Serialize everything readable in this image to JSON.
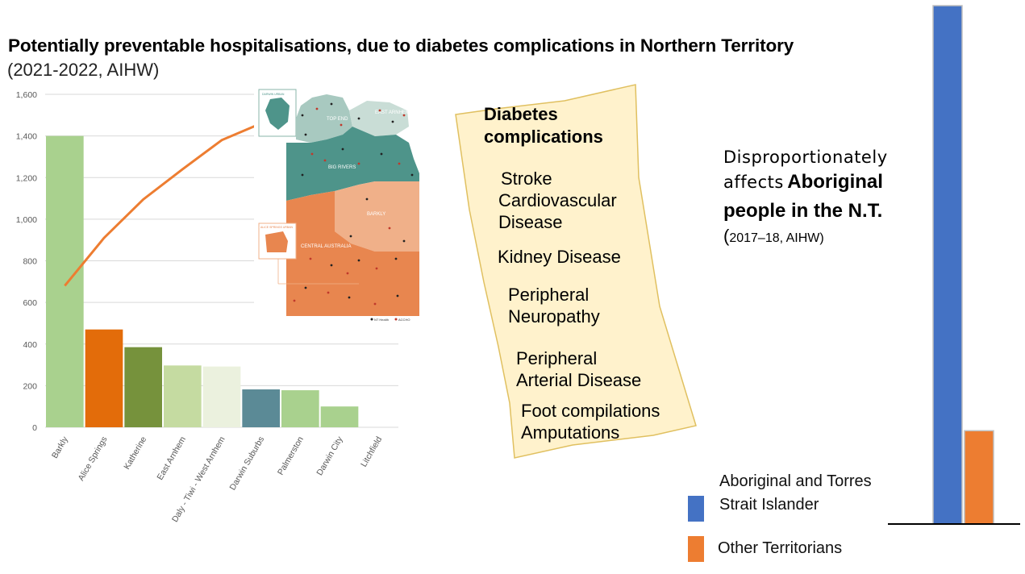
{
  "title": "Potentially preventable hospitalisations, due to diabetes complications in Northern Territory",
  "subtitle": "(2021-2022, AIHW)",
  "chart_data": [
    {
      "type": "bar",
      "categories": [
        "Barkly",
        "Alice Springs",
        "Katherine",
        "East Arnhem",
        "Daly - Tiwi - West Arnhem",
        "Darwin Suburbs",
        "Palmerston",
        "Darwin City",
        "Litchfield"
      ],
      "series": [
        {
          "values": [
            1400,
            470,
            385,
            297,
            292,
            182,
            178,
            100,
            0
          ],
          "colors": [
            "#a9d18e",
            "#e36c0a",
            "#76923c",
            "#c5dba1",
            "#ebf1de",
            "#5b8a96",
            "#a9d18e",
            "#a9d18e",
            "#a9d18e"
          ]
        }
      ],
      "line": {
        "values": [
          680,
          910,
          1095,
          1240,
          1380,
          1460
        ],
        "color": "#ed7d31"
      },
      "ylim": [
        0,
        1600
      ],
      "yticks": [
        "0",
        "200",
        "400",
        "600",
        "800",
        "1,000",
        "1,200",
        "1,400",
        "1,600"
      ],
      "grid": true
    },
    {
      "type": "bar",
      "categories": [
        "Aboriginal and Torres Strait Islander",
        "Other Territorians"
      ],
      "values": [
        100,
        18
      ],
      "colors": [
        "#4472c4",
        "#ed7d31"
      ]
    }
  ],
  "map": {
    "labels": [
      "TOP END",
      "EAST ARNHEM",
      "BIG RIVERS",
      "BARKLY",
      "CENTRAL AUSTRALIA",
      "DARWIN URBAN",
      "ALICE SPRINGS URBAN"
    ],
    "legend": [
      "NT Health",
      "ACCHO"
    ],
    "colors": {
      "top_end": "#a8c9c0",
      "east_arnhem": "#c9ddd6",
      "big_rivers": "#4e948a",
      "barkly": "#f0b089",
      "central": "#e8864f"
    }
  },
  "note": {
    "title_line1": "Diabetes",
    "title_line2": "complications",
    "items": [
      {
        "lines": [
          "Stroke",
          "Cardiovascular",
          "Disease"
        ]
      },
      {
        "lines": [
          "Kidney Disease"
        ]
      },
      {
        "lines": [
          "Peripheral",
          "Neuropathy"
        ]
      },
      {
        "lines": [
          "Peripheral",
          "Arterial Disease"
        ]
      },
      {
        "lines": [
          "Foot compilations",
          "Amputations"
        ]
      }
    ]
  },
  "affects": {
    "line1": "Disproportionately",
    "line2_hand": "affects",
    "line2_bold": "Aboriginal",
    "line3": "people in the  N.T.",
    "source_paren": "(",
    "source": "2017–18, AIHW)"
  },
  "legend": [
    {
      "label_line1": "Aboriginal and Torres",
      "label_line2": "Strait Islander",
      "color": "#4472c4"
    },
    {
      "label_line1": "Other Territorians",
      "color": "#ed7d31"
    }
  ]
}
